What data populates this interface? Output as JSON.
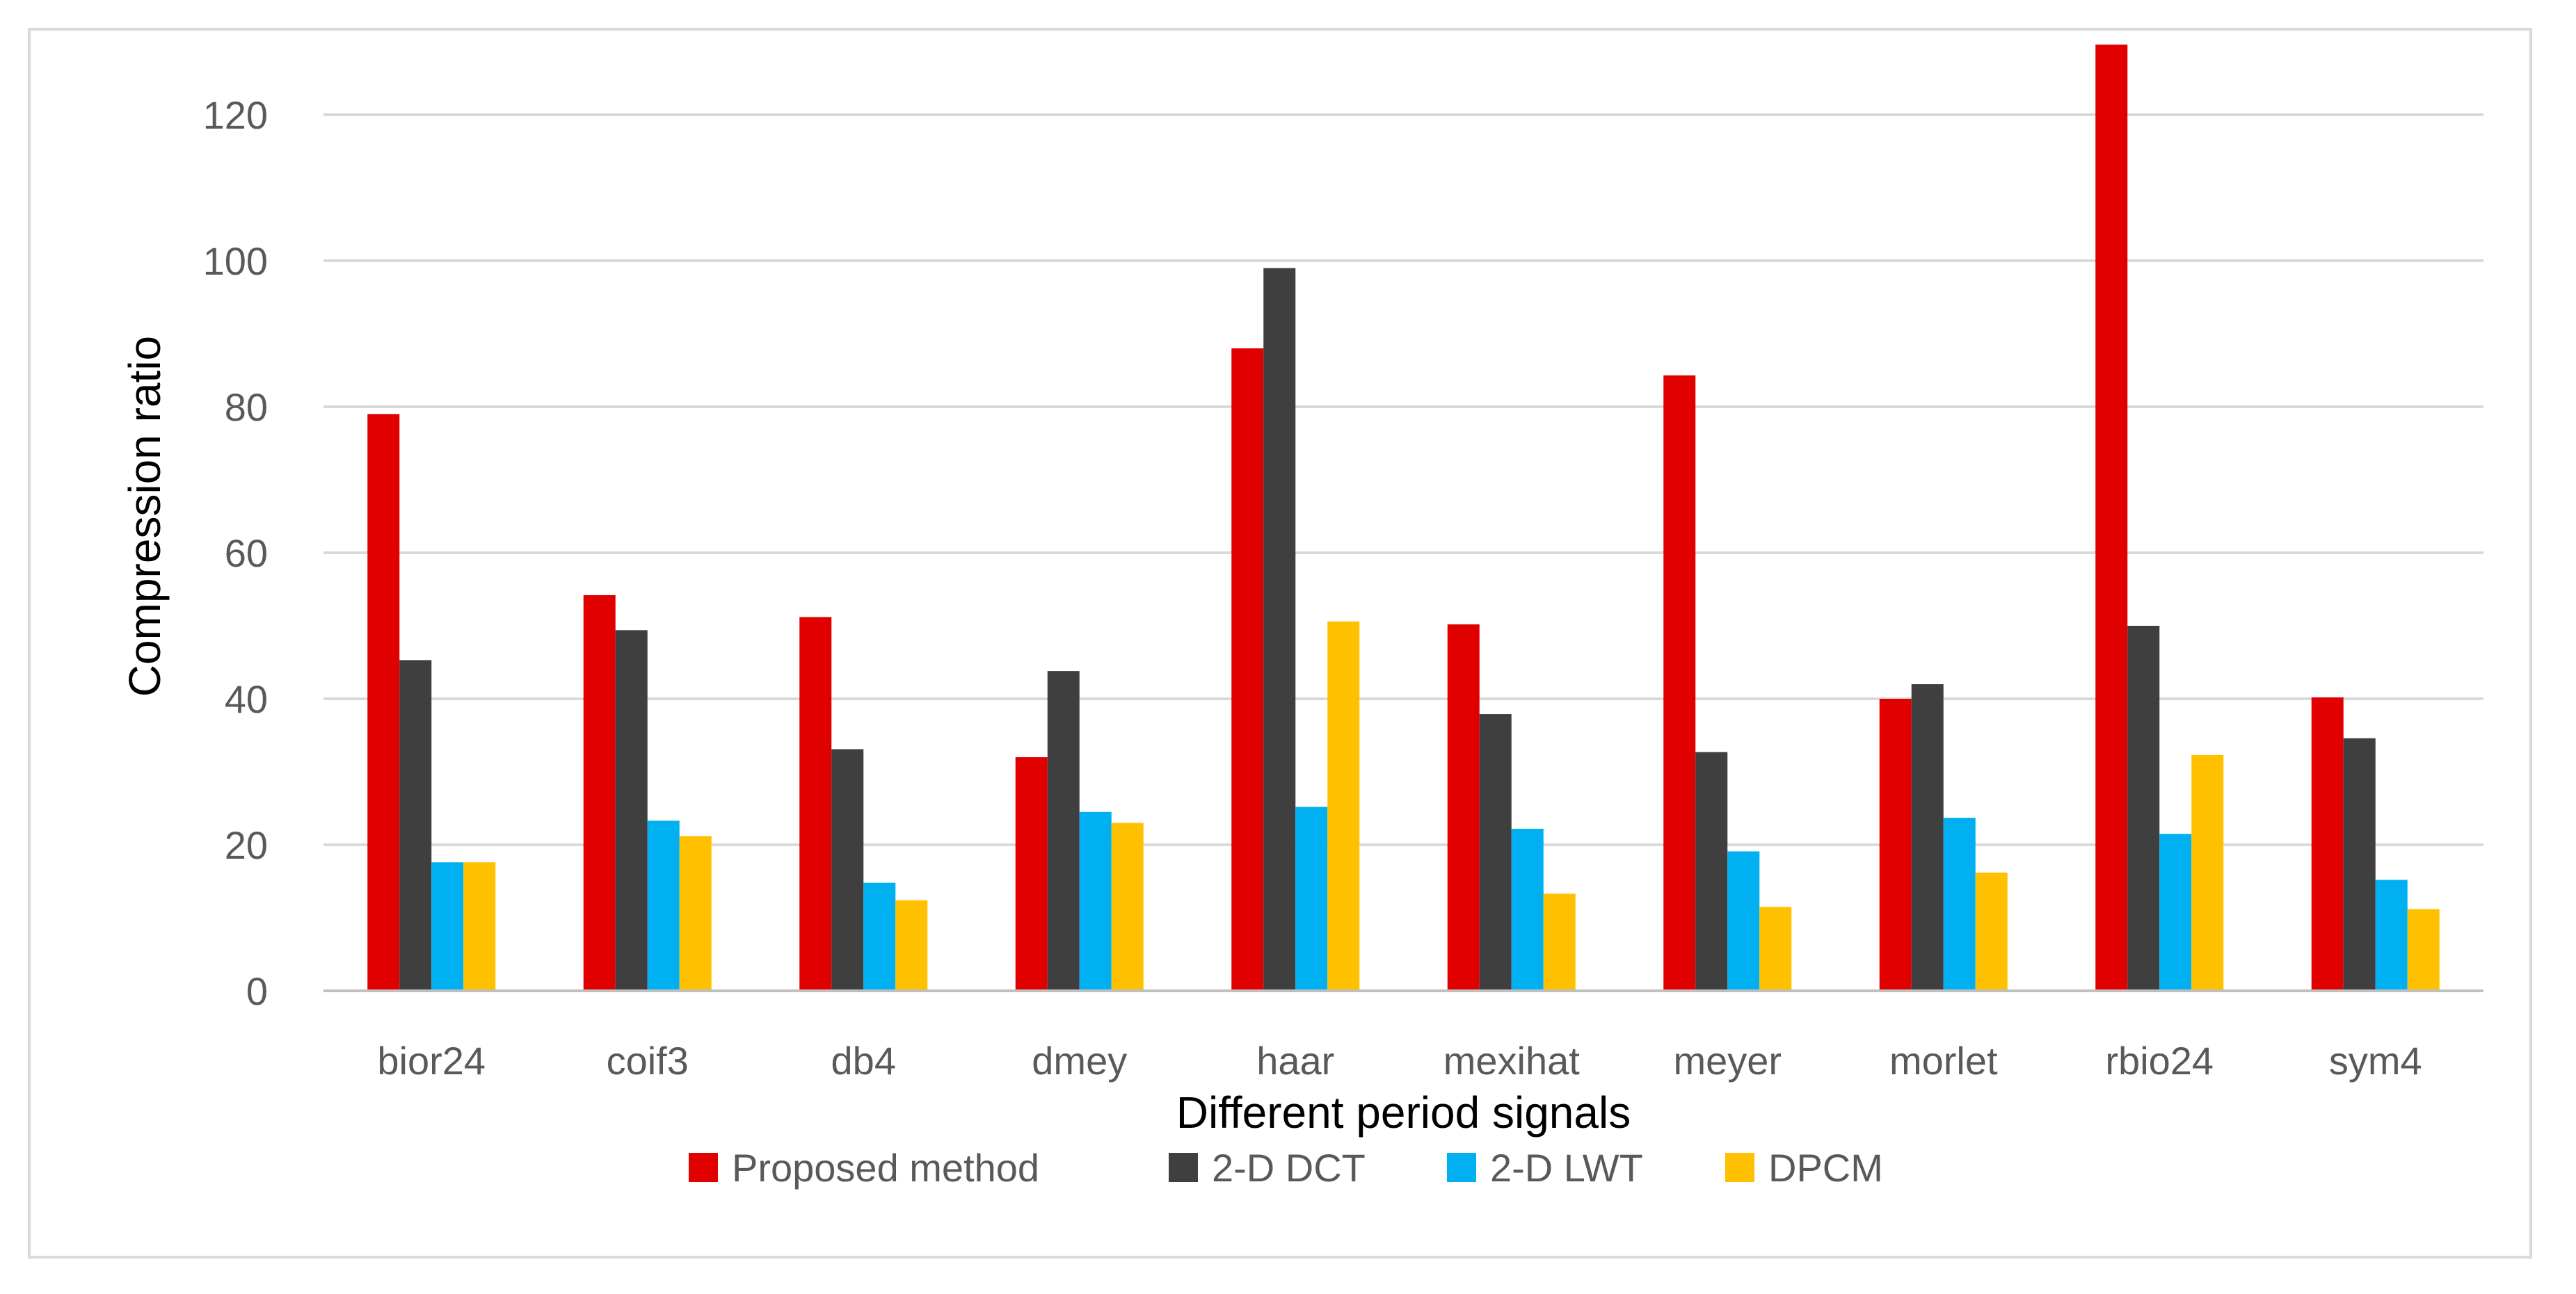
{
  "chart_data": {
    "type": "bar",
    "title": "",
    "xlabel": "Different period signals",
    "ylabel": "Compression ratio",
    "ylim": [
      0,
      130
    ],
    "yticks": [
      0,
      20,
      40,
      60,
      80,
      100,
      120
    ],
    "grid": true,
    "legend_position": "bottom",
    "categories": [
      "bior24",
      "coif3",
      "db4",
      "dmey",
      "haar",
      "mexihat",
      "meyer",
      "morlet",
      "rbio24",
      "sym4"
    ],
    "series": [
      {
        "name": "Proposed method",
        "color": "#e00000",
        "values": [
          79,
          54.2,
          51.2,
          32,
          88,
          50.2,
          84.3,
          40,
          129.6,
          40.2
        ]
      },
      {
        "name": "2-D DCT",
        "color": "#3f3f3f",
        "values": [
          45.3,
          49.4,
          33.1,
          43.8,
          99,
          37.9,
          32.7,
          42,
          50,
          34.6
        ]
      },
      {
        "name": "2-D LWT",
        "color": "#00b0f0",
        "values": [
          17.6,
          23.3,
          14.8,
          24.5,
          25.2,
          22.2,
          19.1,
          23.7,
          21.5,
          15.2
        ]
      },
      {
        "name": "DPCM",
        "color": "#ffc000",
        "values": [
          17.6,
          21.2,
          12.4,
          23,
          50.6,
          13.3,
          11.5,
          16.2,
          32.3,
          11.2
        ]
      }
    ]
  }
}
